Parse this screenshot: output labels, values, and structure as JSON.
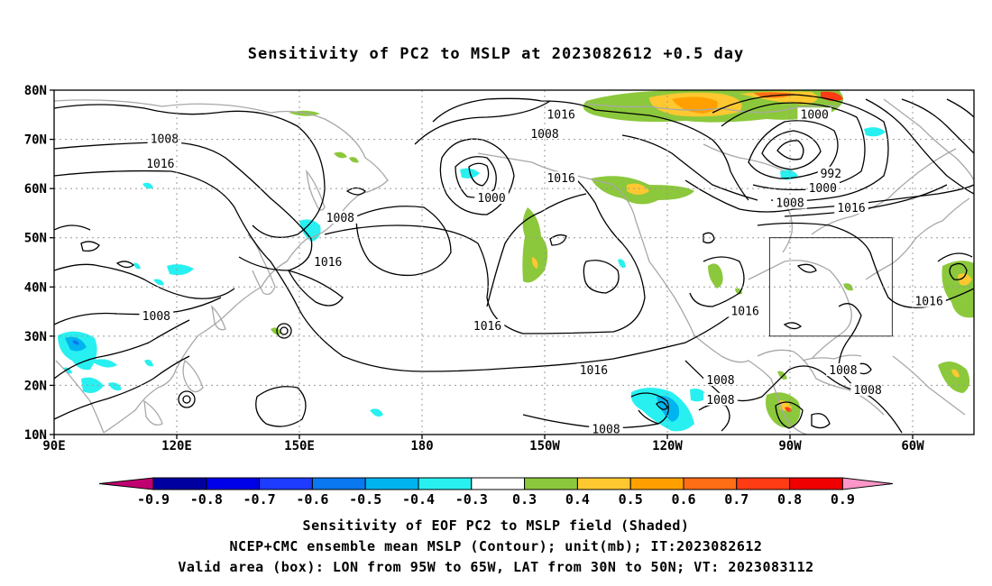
{
  "title": "Sensitivity of PC2 to MSLP at 2023082612 +0.5 day",
  "map": {
    "lat_labels": [
      "80N",
      "70N",
      "60N",
      "50N",
      "40N",
      "30N",
      "20N",
      "10N"
    ],
    "lon_labels": [
      "90E",
      "120E",
      "150E",
      "180",
      "150W",
      "120W",
      "90W",
      "60W"
    ],
    "lat_values": [
      80,
      70,
      60,
      50,
      40,
      30,
      20,
      10
    ],
    "lon_values": [
      90,
      120,
      150,
      180,
      210,
      240,
      270,
      300
    ],
    "lon_range": [
      90,
      315
    ],
    "lat_range": [
      10,
      80
    ],
    "grid": "dotted",
    "valid_box": {
      "lon": [
        265,
        295
      ],
      "lat": [
        30,
        50
      ]
    },
    "contour_labels": [
      {
        "text": "1016",
        "lon": 214,
        "lat": 75
      },
      {
        "text": "1000",
        "lon": 276,
        "lat": 75
      },
      {
        "text": "1008",
        "lon": 117,
        "lat": 70
      },
      {
        "text": "1008",
        "lon": 210,
        "lat": 71
      },
      {
        "text": "992",
        "lon": 280,
        "lat": 63
      },
      {
        "text": "1016",
        "lon": 116,
        "lat": 65
      },
      {
        "text": "1016",
        "lon": 214,
        "lat": 62
      },
      {
        "text": "1000",
        "lon": 278,
        "lat": 60
      },
      {
        "text": "1000",
        "lon": 197,
        "lat": 58
      },
      {
        "text": "1008",
        "lon": 270,
        "lat": 57
      },
      {
        "text": "1016",
        "lon": 285,
        "lat": 56
      },
      {
        "text": "1008",
        "lon": 160,
        "lat": 54
      },
      {
        "text": "1016",
        "lon": 157,
        "lat": 45
      },
      {
        "text": "1016",
        "lon": 304,
        "lat": 37
      },
      {
        "text": "1016",
        "lon": 259,
        "lat": 35
      },
      {
        "text": "1008",
        "lon": 115,
        "lat": 34
      },
      {
        "text": "1016",
        "lon": 196,
        "lat": 32
      },
      {
        "text": "1016",
        "lon": 222,
        "lat": 23
      },
      {
        "text": "1008",
        "lon": 283,
        "lat": 23
      },
      {
        "text": "1008",
        "lon": 253,
        "lat": 21
      },
      {
        "text": "1008",
        "lon": 289,
        "lat": 19
      },
      {
        "text": "1008",
        "lon": 253,
        "lat": 17
      },
      {
        "text": "1008",
        "lon": 225,
        "lat": 11
      }
    ]
  },
  "colorbar": {
    "labels": [
      "-0.9",
      "-0.8",
      "-0.7",
      "-0.6",
      "-0.5",
      "-0.4",
      "-0.3",
      "0.3",
      "0.4",
      "0.5",
      "0.6",
      "0.7",
      "0.8",
      "0.9"
    ],
    "colors": [
      "#0000a0",
      "#0000e8",
      "#1e3cff",
      "#0a78f0",
      "#00b4f0",
      "#28f0f0",
      "#ffffff",
      "#8cc83c",
      "#ffc830",
      "#ffa000",
      "#ff6e14",
      "#ff3c14",
      "#f00000"
    ],
    "low_color": "#c00070",
    "high_color": "#ff96c8"
  },
  "captions": {
    "line1": "Sensitivity of EOF PC2 to MSLP field (Shaded)",
    "line2": "NCEP+CMC ensemble mean MSLP (Contour); unit(mb); IT:2023082612",
    "line3": "Valid area (box): LON from 95W to 65W, LAT from 30N to 50N; VT: 2023083112"
  }
}
